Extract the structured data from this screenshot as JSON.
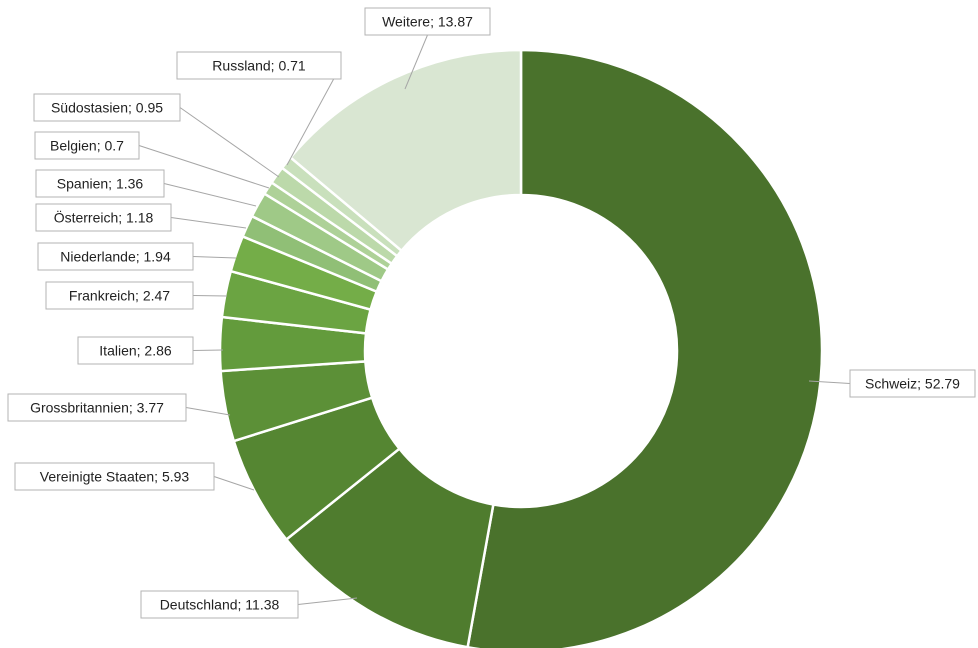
{
  "chart_data": {
    "type": "pie",
    "variant": "donut",
    "title": "",
    "legend": "none",
    "label_format": "{name}; {value}",
    "separator": "; ",
    "slices": [
      {
        "name": "Schweiz",
        "value": 52.79,
        "value_label": "52.79",
        "color": "#4a722c"
      },
      {
        "name": "Deutschland",
        "value": 11.38,
        "value_label": "11.38",
        "color": "#4f7c2e"
      },
      {
        "name": "Vereinigte Staaten",
        "value": 5.93,
        "value_label": "5.93",
        "color": "#558632"
      },
      {
        "name": "Grossbritannien",
        "value": 3.77,
        "value_label": "3.77",
        "color": "#5c9037"
      },
      {
        "name": "Italien",
        "value": 2.86,
        "value_label": "2.86",
        "color": "#639b3c"
      },
      {
        "name": "Frankreich",
        "value": 2.47,
        "value_label": "2.47",
        "color": "#6ba442"
      },
      {
        "name": "Niederlande",
        "value": 1.94,
        "value_label": "1.94",
        "color": "#74ad48"
      },
      {
        "name": "Österreich",
        "value": 1.18,
        "value_label": "1.18",
        "color": "#90bf76"
      },
      {
        "name": "Spanien",
        "value": 1.36,
        "value_label": "1.36",
        "color": "#9fc987"
      },
      {
        "name": "Belgien",
        "value": 0.7,
        "value_label": "0.7",
        "color": "#aed198"
      },
      {
        "name": "Südostasien",
        "value": 0.95,
        "value_label": "0.95",
        "color": "#bcd9aa"
      },
      {
        "name": "Russland",
        "value": 0.71,
        "value_label": "0.71",
        "color": "#c9e0bc"
      },
      {
        "name": "Weitere",
        "value": 13.87,
        "value_label": "13.87",
        "color": "#d9e6d2"
      }
    ]
  }
}
